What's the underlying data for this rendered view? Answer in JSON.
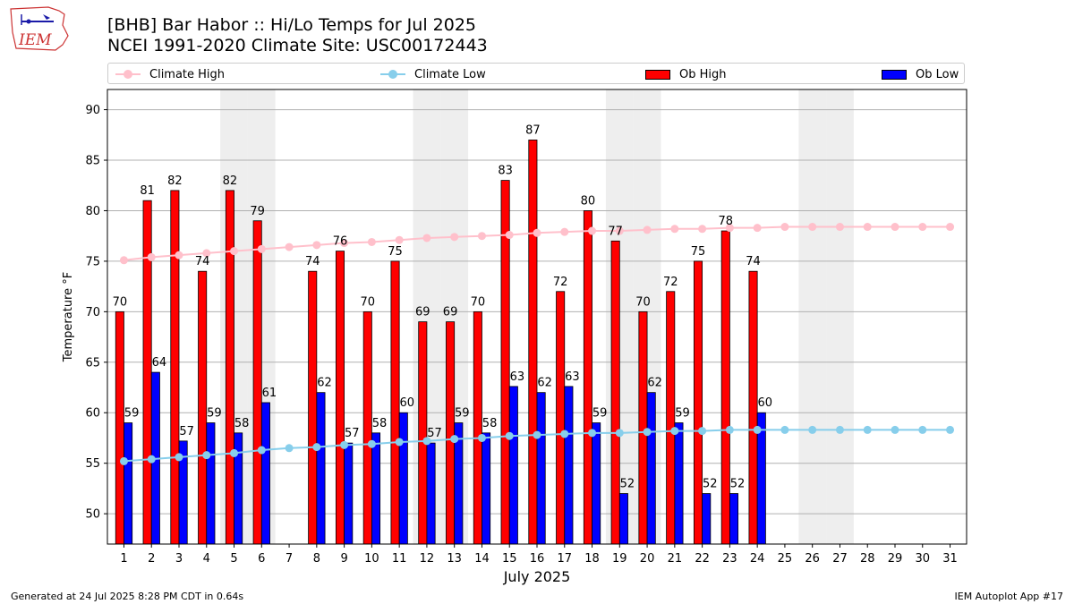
{
  "title_line1": "[BHB] Bar Habor :: Hi/Lo Temps for Jul 2025",
  "title_line2": "NCEI 1991-2020 Climate Site: USC00172443",
  "logo_text": "IEM",
  "footer_left": "Generated at 24 Jul 2025 8:28 PM CDT in 0.64s",
  "footer_right": "IEM Autoplot App #17",
  "colors": {
    "ob_high": "#ff0000",
    "ob_low": "#0000ff",
    "climate_high": "#ffc0cb",
    "climate_low": "#87ceeb",
    "weekend_shade": "#eeeeee",
    "grid": "#b0b0b0"
  },
  "legend": {
    "climate_high": "Climate High",
    "climate_low": "Climate Low",
    "ob_high": "Ob High",
    "ob_low": "Ob Low"
  },
  "chart_data": {
    "type": "bar",
    "xlabel": "July 2025",
    "ylabel": "Temperature °F",
    "ylim": [
      47,
      92
    ],
    "yticks": [
      50,
      55,
      60,
      65,
      70,
      75,
      80,
      85,
      90
    ],
    "grid": true,
    "legend_position": "top",
    "x": [
      1,
      2,
      3,
      4,
      5,
      6,
      7,
      8,
      9,
      10,
      11,
      12,
      13,
      14,
      15,
      16,
      17,
      18,
      19,
      20,
      21,
      22,
      23,
      24,
      25,
      26,
      27,
      28,
      29,
      30,
      31
    ],
    "shaded_days": [
      5,
      6,
      12,
      13,
      19,
      20,
      26,
      27
    ],
    "series": [
      {
        "name": "Ob High",
        "kind": "bar",
        "values": [
          70,
          81,
          82,
          74,
          82,
          79,
          null,
          74,
          76,
          70,
          75,
          69,
          69,
          70,
          83,
          87,
          72,
          80,
          77,
          70,
          72,
          75,
          78,
          74,
          null,
          null,
          null,
          null,
          null,
          null,
          null
        ]
      },
      {
        "name": "Ob Low",
        "kind": "bar",
        "values": [
          59,
          64,
          57.2,
          59,
          58,
          61,
          null,
          62,
          57,
          58,
          60,
          57,
          59,
          58,
          62.6,
          62,
          62.6,
          59,
          52,
          62,
          59,
          52,
          52,
          60,
          null,
          null,
          null,
          null,
          null,
          null,
          null
        ]
      },
      {
        "name": "Climate High",
        "kind": "line",
        "values": [
          75.1,
          75.4,
          75.6,
          75.8,
          76.0,
          76.2,
          76.4,
          76.6,
          76.8,
          76.9,
          77.1,
          77.3,
          77.4,
          77.5,
          77.6,
          77.8,
          77.9,
          78.0,
          78.0,
          78.1,
          78.2,
          78.2,
          78.3,
          78.3,
          78.4,
          78.4,
          78.4,
          78.4,
          78.4,
          78.4,
          78.4
        ]
      },
      {
        "name": "Climate Low",
        "kind": "line",
        "values": [
          55.2,
          55.4,
          55.6,
          55.8,
          56.0,
          56.3,
          56.5,
          56.6,
          56.8,
          56.9,
          57.1,
          57.2,
          57.4,
          57.5,
          57.7,
          57.8,
          57.9,
          58.0,
          58.0,
          58.1,
          58.2,
          58.2,
          58.3,
          58.3,
          58.3,
          58.3,
          58.3,
          58.3,
          58.3,
          58.3,
          58.3
        ]
      }
    ],
    "bar_labels": {
      "high": [
        "70",
        "81",
        "82",
        "74",
        "82",
        "79",
        null,
        "74",
        "76",
        "70",
        "75",
        "69",
        "69",
        "70",
        "83",
        "87",
        "72",
        "80",
        "77",
        "70",
        "72",
        "75",
        "78",
        "74",
        null,
        null,
        null,
        null,
        null,
        null,
        null
      ],
      "low": [
        "59",
        "64",
        "57",
        "59",
        "58",
        "61",
        null,
        "62",
        "57",
        "58",
        "60",
        "57",
        "59",
        "58",
        "63",
        "62",
        "63",
        "59",
        "52",
        "62",
        "59",
        "52",
        "52",
        "60",
        null,
        null,
        null,
        null,
        null,
        null,
        null
      ]
    }
  }
}
